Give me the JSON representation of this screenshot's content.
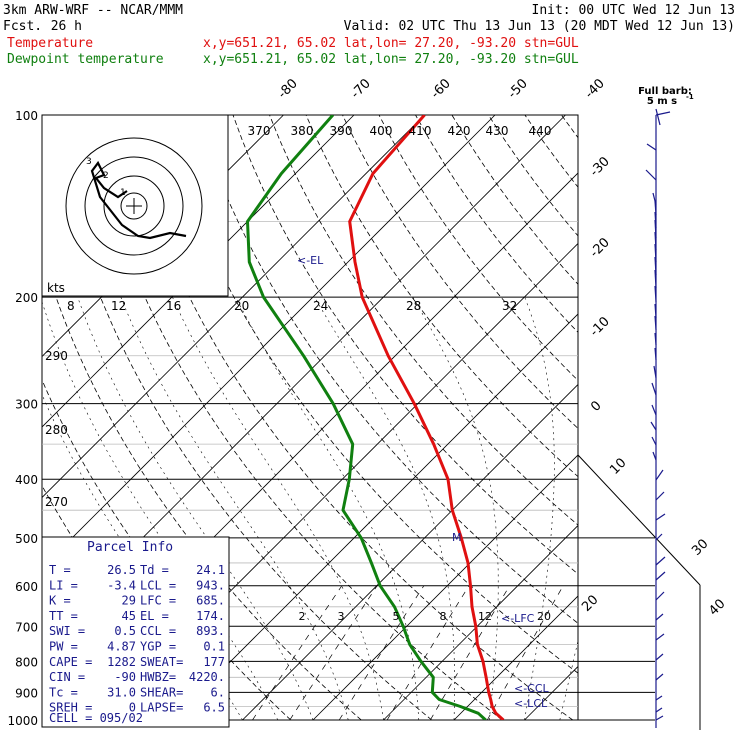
{
  "header": {
    "model": "3km ARW-WRF -- NCAR/MMM",
    "init": "Init: 00 UTC Wed 12 Jun 13",
    "fcst_label": "Fcst.",
    "fcst_value": "26 h",
    "valid": "Valid: 02 UTC Thu 13 Jun 13 (20 MDT Wed 12 Jun 13)",
    "temp_legend": "Temperature",
    "dewp_legend": "Dewpoint temperature",
    "temp_info": "x,y=651.21, 65.02   lat,lon= 27.20, -93.20  stn=GUL",
    "dewp_info": "x,y=651.21, 65.02   lat,lon= 27.20, -93.20  stn=GUL",
    "colors": {
      "temperature": "#e01010",
      "dewpoint": "#108010",
      "wind": "#1a1a8c",
      "legend_temp": "#e01010",
      "legend_dewp": "#108010"
    }
  },
  "barb_key": {
    "line1": "Full barb:",
    "line2": "5 m s"
  },
  "chart_data": {
    "type": "line",
    "kind": "skew-T log-p sounding",
    "pressure_levels": [
      "100",
      "200",
      "300",
      "400",
      "500",
      "600",
      "700",
      "800",
      "900",
      "1000"
    ],
    "isotherm_labels": [
      "-80",
      "-70",
      "-60",
      "-50",
      "-40",
      "-30",
      "-20",
      "-10",
      "0",
      "10",
      "20",
      "30",
      "40"
    ],
    "theta_labels": [
      "370",
      "380",
      "390",
      "400",
      "410",
      "420",
      "430",
      "440"
    ],
    "theta_left_labels": [
      "290",
      "280",
      "270"
    ],
    "mixing_ratio_labels": [
      "2",
      "3",
      "5",
      "8",
      "12",
      "20"
    ],
    "hodo_labels": [
      "kts",
      "8",
      "12",
      "16",
      "20",
      "24",
      "28",
      "32"
    ],
    "temperature": [
      {
        "p": 1000,
        "t": 27.0
      },
      {
        "p": 975,
        "t": 25.0
      },
      {
        "p": 950,
        "t": 23.5
      },
      {
        "p": 925,
        "t": 22.3
      },
      {
        "p": 900,
        "t": 21.0
      },
      {
        "p": 850,
        "t": 18.5
      },
      {
        "p": 800,
        "t": 15.8
      },
      {
        "p": 750,
        "t": 12.6
      },
      {
        "p": 700,
        "t": 9.8
      },
      {
        "p": 650,
        "t": 6.5
      },
      {
        "p": 600,
        "t": 3.3
      },
      {
        "p": 550,
        "t": -0.3
      },
      {
        "p": 500,
        "t": -4.8
      },
      {
        "p": 450,
        "t": -10.0
      },
      {
        "p": 400,
        "t": -15.0
      },
      {
        "p": 350,
        "t": -22.0
      },
      {
        "p": 300,
        "t": -30.5
      },
      {
        "p": 250,
        "t": -41.0
      },
      {
        "p": 200,
        "t": -53.0
      },
      {
        "p": 175,
        "t": -59.0
      },
      {
        "p": 150,
        "t": -65.5
      },
      {
        "p": 125,
        "t": -69.0
      },
      {
        "p": 100,
        "t": -70.0
      }
    ],
    "dewpoint": [
      {
        "p": 1000,
        "t": 24.5
      },
      {
        "p": 975,
        "t": 22.5
      },
      {
        "p": 950,
        "t": 19.0
      },
      {
        "p": 925,
        "t": 15.0
      },
      {
        "p": 900,
        "t": 13.0
      },
      {
        "p": 850,
        "t": 11.0
      },
      {
        "p": 800,
        "t": 7.0
      },
      {
        "p": 750,
        "t": 3.0
      },
      {
        "p": 700,
        "t": -0.5
      },
      {
        "p": 650,
        "t": -4.5
      },
      {
        "p": 600,
        "t": -9.5
      },
      {
        "p": 550,
        "t": -14.0
      },
      {
        "p": 500,
        "t": -19.0
      },
      {
        "p": 450,
        "t": -25.5
      },
      {
        "p": 400,
        "t": -29.0
      },
      {
        "p": 350,
        "t": -33.5
      },
      {
        "p": 300,
        "t": -42.0
      },
      {
        "p": 250,
        "t": -53.0
      },
      {
        "p": 200,
        "t": -67.0
      },
      {
        "p": 175,
        "t": -74.0
      },
      {
        "p": 150,
        "t": -80.0
      },
      {
        "p": 125,
        "t": -82.0
      },
      {
        "p": 100,
        "t": -83.0
      }
    ],
    "level_markers": [
      {
        "label": "<-EL",
        "p": 174
      },
      {
        "label": "<-LFC",
        "p": 685
      },
      {
        "label": "<-CCL",
        "p": 893
      },
      {
        "label": "<-LCL",
        "p": 943
      }
    ]
  },
  "parcel_info": {
    "title": "Parcel Info",
    "rows": [
      {
        "l": "T   =",
        "lv": "26.5",
        "r": "Td  =",
        "rv": "24.1"
      },
      {
        "l": "LI  =",
        "lv": "-3.4",
        "r": "LCL =",
        "rv": "943."
      },
      {
        "l": "K   =",
        "lv": "29",
        "r": "LFC =",
        "rv": "685."
      },
      {
        "l": "TT  =",
        "lv": "45",
        "r": "EL  =",
        "rv": "174."
      },
      {
        "l": "SWI =",
        "lv": "0.5",
        "r": "CCL =",
        "rv": "893."
      },
      {
        "l": "PW  =",
        "lv": "4.87",
        "r": "YGP =",
        "rv": "0.1"
      },
      {
        "l": "CAPE =",
        "lv": "1282",
        "r": "SWEAT=",
        "rv": "177"
      },
      {
        "l": "CIN  =",
        "lv": "-90",
        "r": "HWBZ=",
        "rv": "4220."
      },
      {
        "l": "Tc  =",
        "lv": "31.0",
        "r": "SHEAR=",
        "rv": "6."
      },
      {
        "l": "SREH =",
        "lv": "0",
        "r": "LAPSE=",
        "rv": "6.5"
      }
    ],
    "cell": "CELL = 095/02"
  }
}
